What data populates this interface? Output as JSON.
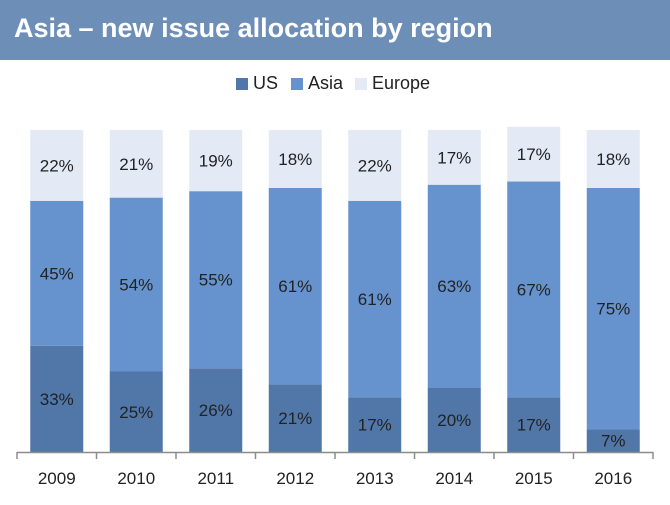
{
  "title": "Asia – new issue allocation by region",
  "colors": {
    "title_bar": "#6d8fb7",
    "US": "#5077a8",
    "Asia": "#6693cd",
    "Europe": "#e3e9f5",
    "text": "#222222",
    "axis": "#8c8c8c"
  },
  "chart_data": {
    "type": "bar",
    "stacked": true,
    "percent": true,
    "categories": [
      "2009",
      "2010",
      "2011",
      "2012",
      "2013",
      "2014",
      "2015",
      "2016"
    ],
    "series": [
      {
        "name": "US",
        "values": [
          33,
          25,
          26,
          21,
          17,
          20,
          17,
          7
        ]
      },
      {
        "name": "Asia",
        "values": [
          45,
          54,
          55,
          61,
          61,
          63,
          67,
          75
        ]
      },
      {
        "name": "Europe",
        "values": [
          22,
          21,
          19,
          18,
          22,
          17,
          17,
          18
        ]
      }
    ],
    "value_suffix": "%",
    "legend_position": "top",
    "ylim": [
      0,
      100
    ],
    "grid": false
  }
}
